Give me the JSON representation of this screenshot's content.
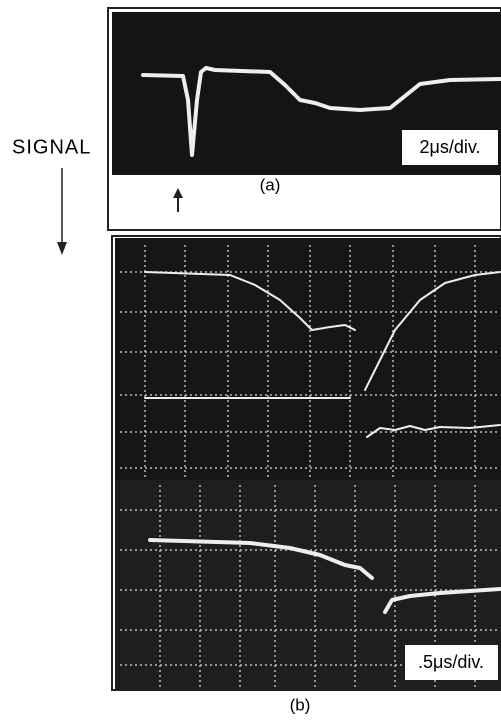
{
  "side_label": "SIGNAL",
  "panels": [
    {
      "scale": "2μs/div.",
      "caption": "(a)"
    },
    {
      "scale": ".5μs/div.",
      "caption": "(b)"
    }
  ]
}
